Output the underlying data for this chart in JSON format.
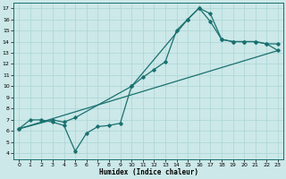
{
  "xlabel": "Humidex (Indice chaleur)",
  "bg_color": "#cce8e8",
  "grid_color": "#aad4d4",
  "line_color": "#1a7070",
  "xlim": [
    -0.5,
    23.5
  ],
  "ylim": [
    3.5,
    17.5
  ],
  "xticks": [
    0,
    1,
    2,
    3,
    4,
    5,
    6,
    7,
    8,
    9,
    10,
    11,
    12,
    13,
    14,
    15,
    16,
    17,
    18,
    19,
    20,
    21,
    22,
    23
  ],
  "yticks": [
    4,
    5,
    6,
    7,
    8,
    9,
    10,
    11,
    12,
    13,
    14,
    15,
    16,
    17
  ],
  "series1_x": [
    0,
    1,
    2,
    3,
    4,
    5,
    6,
    7,
    8,
    9,
    10,
    11,
    12,
    13,
    14,
    15,
    16,
    17,
    18,
    19,
    20,
    21,
    22,
    23
  ],
  "series1_y": [
    6.2,
    7.0,
    7.0,
    6.8,
    6.5,
    4.2,
    5.8,
    6.4,
    6.5,
    6.7,
    10.0,
    10.8,
    11.5,
    12.2,
    15.0,
    16.0,
    17.0,
    16.5,
    14.2,
    14.0,
    14.0,
    14.0,
    13.8,
    13.2
  ],
  "series2_x": [
    0,
    3,
    4,
    5,
    10,
    15,
    16,
    17,
    18,
    19,
    20,
    21,
    22,
    23
  ],
  "series2_y": [
    6.2,
    7.0,
    6.8,
    7.2,
    10.0,
    16.0,
    17.0,
    15.8,
    14.2,
    14.0,
    14.0,
    14.0,
    13.8,
    13.8
  ],
  "series3_x": [
    0,
    23
  ],
  "series3_y": [
    6.2,
    13.2
  ]
}
